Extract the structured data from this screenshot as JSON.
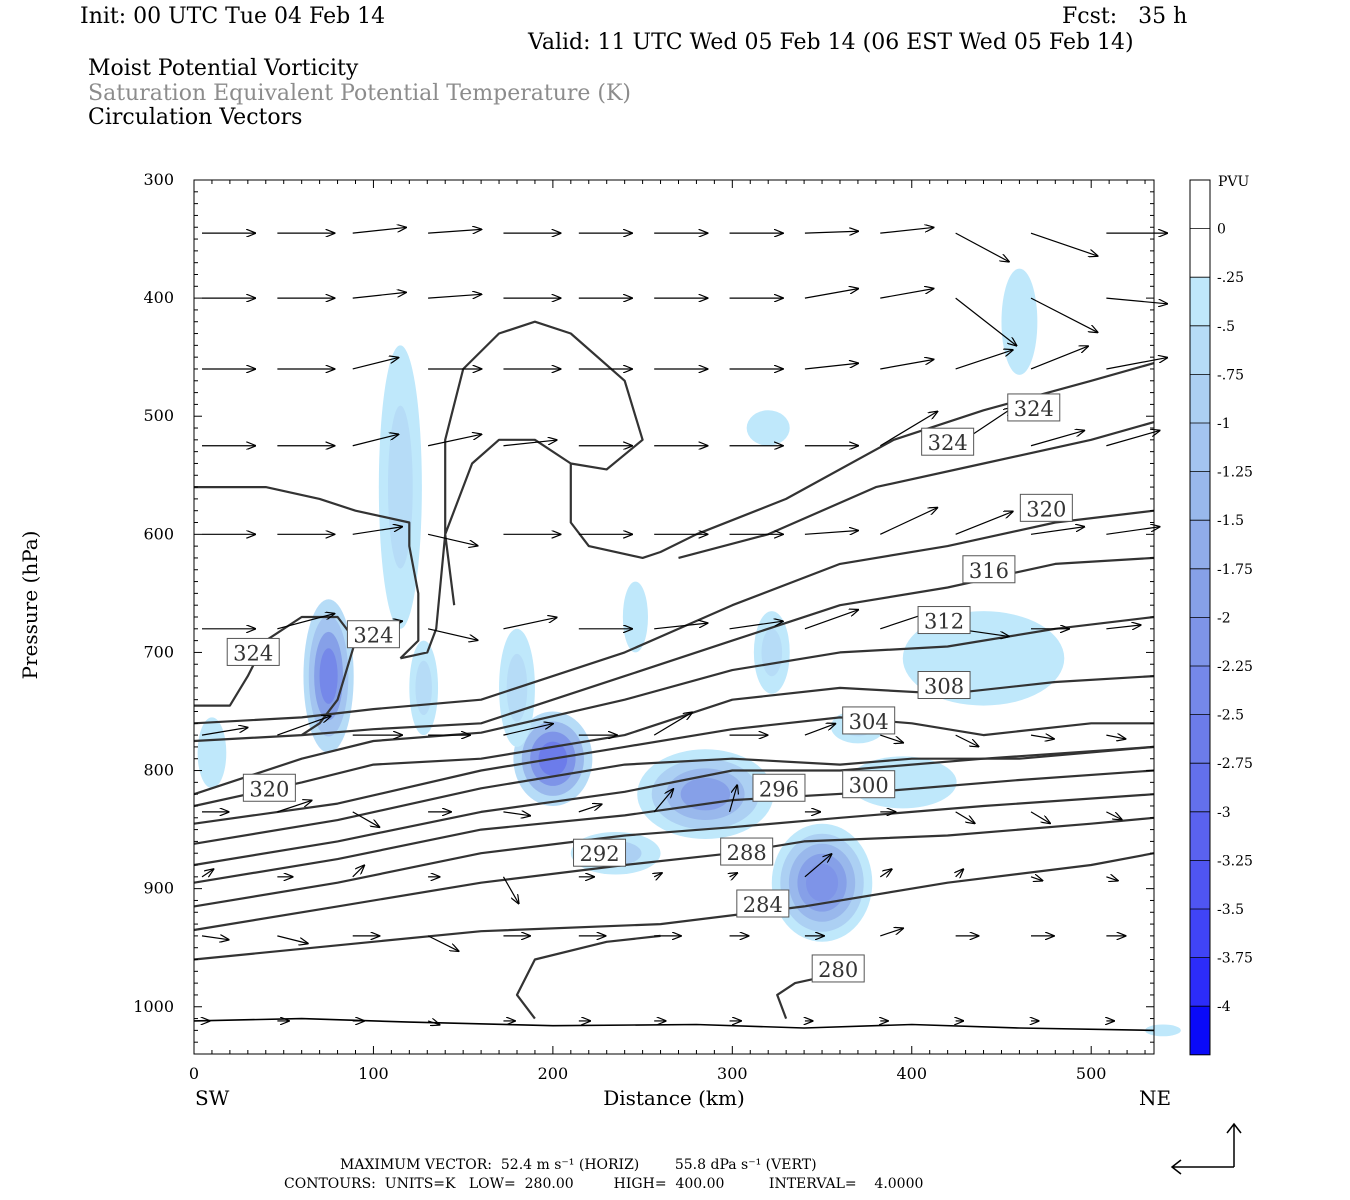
{
  "header": {
    "init": "Init: 00 UTC Tue 04 Feb 14",
    "fcst": "Fcst:   35 h",
    "valid": "Valid: 11 UTC Wed 05 Feb 14 (06 EST Wed 05 Feb 14)",
    "field1": "Moist Potential Vorticity",
    "field2": "Saturation Equivalent Potential Temperature (K)",
    "field3": "Circulation Vectors"
  },
  "footer": {
    "max_vector": "MAXIMUM VECTOR:  52.4 m s⁻¹ (HORIZ)        55.8 dPa s⁻¹ (VERT)",
    "contours": "CONTOURS:  UNITS=K   LOW=  280.00         HIGH=  400.00          INTERVAL=    4.0000"
  },
  "colors": {
    "pv_shades": [
      "#ffffff",
      "#ffffff",
      "#bfe8fb",
      "#b6dcf7",
      "#acd0f3",
      "#a3c4f0",
      "#99b8ec",
      "#90acea",
      "#86a0e8",
      "#7e94e8",
      "#7588e9",
      "#6c7cea",
      "#6370ec",
      "#5a62ef",
      "#4f55f2",
      "#4044f6",
      "#2c2cfa"
    ],
    "contour": "#333333",
    "contour_label_bg": "#ffffff"
  },
  "chart_data": {
    "type": "contour",
    "xlabel": "Distance (km)",
    "ylabel": "Pressure (hPa)",
    "xlim": [
      0,
      535
    ],
    "ylim": [
      1040,
      300
    ],
    "x_ticks": [
      0,
      100,
      200,
      300,
      400,
      500
    ],
    "y_ticks": [
      300,
      400,
      500,
      600,
      700,
      800,
      900,
      1000
    ],
    "x_end_labels": {
      "left": "SW",
      "right": "NE"
    },
    "colorbar": {
      "title": "PVU",
      "levels": [
        "0",
        "-.25",
        "-.5",
        "-.75",
        "-1",
        "-1.25",
        "-1.5",
        "-1.75",
        "-2",
        "-2.25",
        "-2.5",
        "-2.75",
        "-3",
        "-3.25",
        "-3.5",
        "-3.75",
        "-4"
      ]
    },
    "contour_labels": [
      {
        "text": "324",
        "x": 33,
        "p": 700
      },
      {
        "text": "324",
        "x": 100,
        "p": 685
      },
      {
        "text": "320",
        "x": 42,
        "p": 815
      },
      {
        "text": "324",
        "x": 420,
        "p": 522
      },
      {
        "text": "324",
        "x": 468,
        "p": 493
      },
      {
        "text": "320",
        "x": 475,
        "p": 578
      },
      {
        "text": "316",
        "x": 443,
        "p": 630
      },
      {
        "text": "312",
        "x": 418,
        "p": 673
      },
      {
        "text": "308",
        "x": 418,
        "p": 728
      },
      {
        "text": "304",
        "x": 376,
        "p": 758
      },
      {
        "text": "300",
        "x": 376,
        "p": 812
      },
      {
        "text": "296",
        "x": 326,
        "p": 815
      },
      {
        "text": "292",
        "x": 226,
        "p": 870
      },
      {
        "text": "288",
        "x": 308,
        "p": 869
      },
      {
        "text": "284",
        "x": 317,
        "p": 913
      },
      {
        "text": "280",
        "x": 359,
        "p": 968
      }
    ]
  }
}
